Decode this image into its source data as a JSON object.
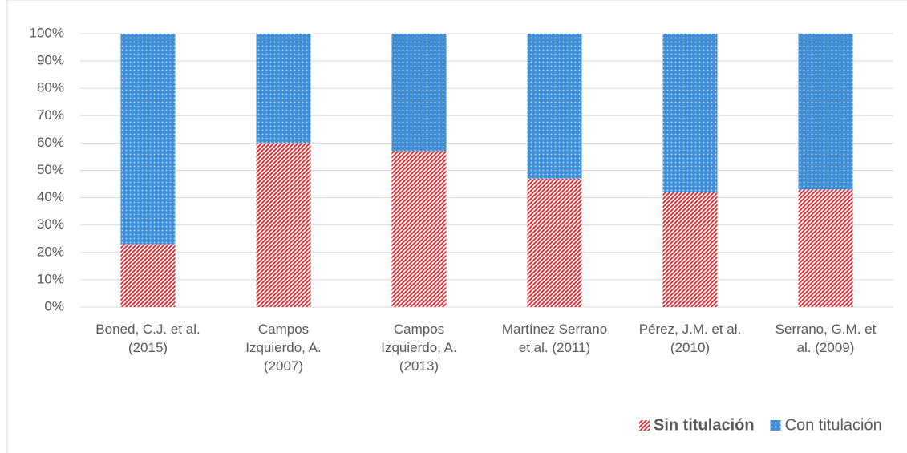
{
  "chart_data": {
    "type": "stacked_bar",
    "categories": [
      "Boned, C.J. et al. (2015)",
      "Campos Izquierdo, A. (2007)",
      "Campos Izquierdo, A. (2013)",
      "Martínez Serrano et al. (2011)",
      "Pérez, J.M. et al. (2010)",
      "Serrano, G.M. et al. (2009)"
    ],
    "series": [
      {
        "name": "Sin titulación",
        "color": "#e8262c",
        "values": [
          23,
          60,
          57,
          47,
          42,
          43
        ]
      },
      {
        "name": "Con titulación",
        "color": "#3f8fd8",
        "values": [
          77,
          40,
          43,
          53,
          58,
          57
        ]
      }
    ],
    "ylim": [
      0,
      100
    ],
    "yticks": [
      {
        "value": 0,
        "label": "0%"
      },
      {
        "value": 10,
        "label": "10%"
      },
      {
        "value": 20,
        "label": "20%"
      },
      {
        "value": 30,
        "label": "30%"
      },
      {
        "value": 40,
        "label": "40%"
      },
      {
        "value": 50,
        "label": "50%"
      },
      {
        "value": 60,
        "label": "60%"
      },
      {
        "value": 70,
        "label": "70%"
      },
      {
        "value": 80,
        "label": "80%"
      },
      {
        "value": 90,
        "label": "90%"
      },
      {
        "value": 100,
        "label": "100%"
      }
    ],
    "grid": true,
    "legend": "bottom"
  }
}
